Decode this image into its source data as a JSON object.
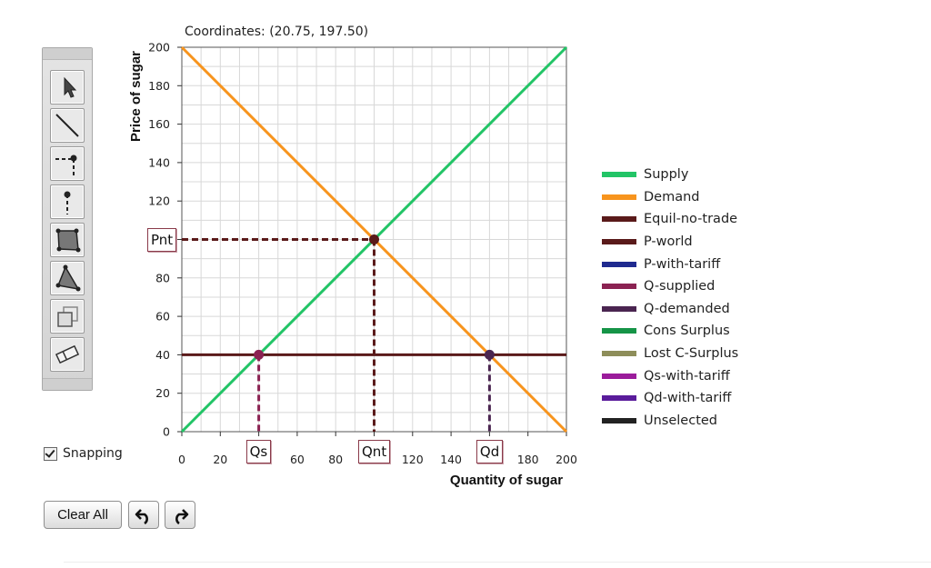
{
  "coordinates_text": "Coordinates: (20.75, 197.50)",
  "toolbar": {
    "tools": [
      {
        "name": "pointer-tool",
        "icon": "arrow-pointer-icon"
      },
      {
        "name": "line-tool",
        "icon": "line-icon"
      },
      {
        "name": "point-with-dropline-tool",
        "icon": "dropline-point-icon"
      },
      {
        "name": "vertical-dropline-tool",
        "icon": "vertical-dropline-icon"
      },
      {
        "name": "quadrilateral-tool",
        "icon": "quadrilateral-icon"
      },
      {
        "name": "triangle-tool",
        "icon": "triangle-icon"
      },
      {
        "name": "copy-tool",
        "icon": "copy-icon"
      },
      {
        "name": "eraser-tool",
        "icon": "eraser-icon"
      }
    ]
  },
  "snapping": {
    "label": "Snapping",
    "checked": true
  },
  "buttons": {
    "clear_all": "Clear All",
    "undo_icon": "undo-icon",
    "redo_icon": "redo-icon"
  },
  "chart_data": {
    "type": "line",
    "xlabel": "Quantity of sugar",
    "ylabel": "Price of sugar",
    "xlim": [
      0,
      200
    ],
    "ylim": [
      0,
      200
    ],
    "x_ticks": [
      "0",
      "20",
      "40",
      "60",
      "80",
      "100",
      "120",
      "140",
      "160",
      "180",
      "200"
    ],
    "y_ticks": [
      "0",
      "20",
      "40",
      "60",
      "80",
      "100",
      "120",
      "140",
      "160",
      "180",
      "200"
    ],
    "grid": true,
    "series": [
      {
        "name": "Supply",
        "color": "#22c466",
        "points": [
          [
            0,
            0
          ],
          [
            200,
            200
          ]
        ]
      },
      {
        "name": "Demand",
        "color": "#f7941d",
        "points": [
          [
            0,
            200
          ],
          [
            200,
            0
          ]
        ]
      },
      {
        "name": "P-world",
        "color": "#5a1a1a",
        "points": [
          [
            0,
            40
          ],
          [
            200,
            40
          ]
        ]
      }
    ],
    "points": [
      {
        "label": "Equil-no-trade",
        "x": 100,
        "y": 100,
        "color": "#5a1a1a"
      },
      {
        "label": "Q-supplied",
        "x": 40,
        "y": 40,
        "color": "#8b2252"
      },
      {
        "label": "Q-demanded",
        "x": 160,
        "y": 40,
        "color": "#4a2550"
      }
    ],
    "droplines": [
      {
        "from": [
          0,
          100
        ],
        "to": [
          100,
          100
        ],
        "color": "#5a1a1a"
      },
      {
        "from": [
          100,
          100
        ],
        "to": [
          100,
          0
        ],
        "color": "#5a1a1a"
      },
      {
        "from": [
          40,
          40
        ],
        "to": [
          40,
          0
        ],
        "color": "#8b2252"
      },
      {
        "from": [
          160,
          40
        ],
        "to": [
          160,
          0
        ],
        "color": "#4a2550"
      }
    ],
    "axis_labels": [
      {
        "text": "Pnt",
        "axis": "y",
        "value": 100
      },
      {
        "text": "Qs",
        "axis": "x",
        "value": 40
      },
      {
        "text": "Qnt",
        "axis": "x",
        "value": 100
      },
      {
        "text": "Qd",
        "axis": "x",
        "value": 160
      }
    ]
  },
  "legend": [
    {
      "label": "Supply",
      "color": "#22c466"
    },
    {
      "label": "Demand",
      "color": "#f7941d"
    },
    {
      "label": "Equil-no-trade",
      "color": "#5a1a1a"
    },
    {
      "label": "P-world",
      "color": "#5a1a1a"
    },
    {
      "label": "P-with-tariff",
      "color": "#1f2a8f"
    },
    {
      "label": "Q-supplied",
      "color": "#8b2252"
    },
    {
      "label": "Q-demanded",
      "color": "#4a2550"
    },
    {
      "label": "Cons Surplus",
      "color": "#159447"
    },
    {
      "label": "Lost C-Surplus",
      "color": "#8e8e5a"
    },
    {
      "label": "Qs-with-tariff",
      "color": "#9b1c9b"
    },
    {
      "label": "Qd-with-tariff",
      "color": "#5a1c9b"
    },
    {
      "label": "Unselected",
      "color": "#222222"
    }
  ]
}
